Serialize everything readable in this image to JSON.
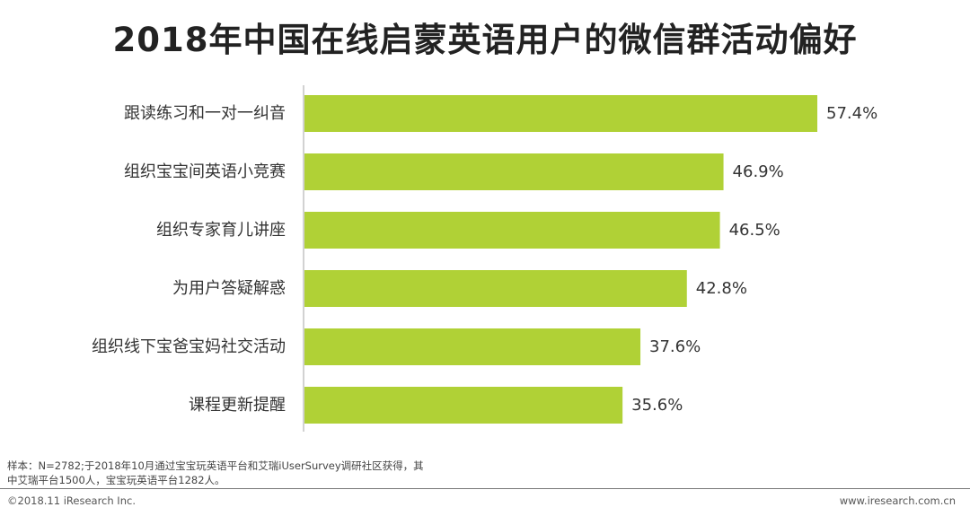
{
  "title": "2018年中国在线启蒙英语用户的微信群活动偏好",
  "chart_data": {
    "type": "bar",
    "orientation": "horizontal",
    "categories": [
      "跟读练习和一对一纠音",
      "组织宝宝间英语小竞赛",
      "组织专家育儿讲座",
      "为用户答疑解惑",
      "组织线下宝爸宝妈社交活动",
      "课程更新提醒"
    ],
    "values": [
      57.4,
      46.9,
      46.5,
      42.8,
      37.6,
      35.6
    ],
    "value_labels": [
      "57.4%",
      "46.9%",
      "46.5%",
      "42.8%",
      "37.6%",
      "35.6%"
    ],
    "unit": "%",
    "xlim": [
      0,
      57.4
    ],
    "bar_color": "#b0d136",
    "grid": false,
    "legend": "none"
  },
  "footer": {
    "note_line1": "样本：N=2782;于2018年10月通过宝宝玩英语平台和艾瑞iUserSurvey调研社区获得，其",
    "note_line2": "中艾瑞平台1500人，宝宝玩英语平台1282人。",
    "copyright": "©2018.11 iResearch Inc.",
    "website": "www.iresearch.com.cn"
  }
}
